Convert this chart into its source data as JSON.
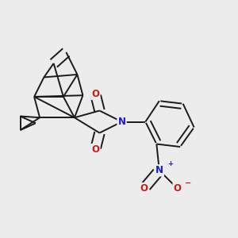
{
  "background_color": "#ececec",
  "bond_color": "#1a1a1a",
  "bond_width": 1.4,
  "atom_labels": {
    "N1": {
      "text": "N",
      "color": "#1a1acc",
      "fontsize": 8.5
    },
    "O1": {
      "text": "O",
      "color": "#cc1a1a",
      "fontsize": 8.5
    },
    "O2": {
      "text": "O",
      "color": "#cc1a1a",
      "fontsize": 8.5
    },
    "N2": {
      "text": "N",
      "color": "#1a1acc",
      "fontsize": 8.5
    },
    "O3": {
      "text": "O",
      "color": "#cc1a1a",
      "fontsize": 8.5
    },
    "O4": {
      "text": "O",
      "color": "#cc1a1a",
      "fontsize": 8.5
    }
  }
}
